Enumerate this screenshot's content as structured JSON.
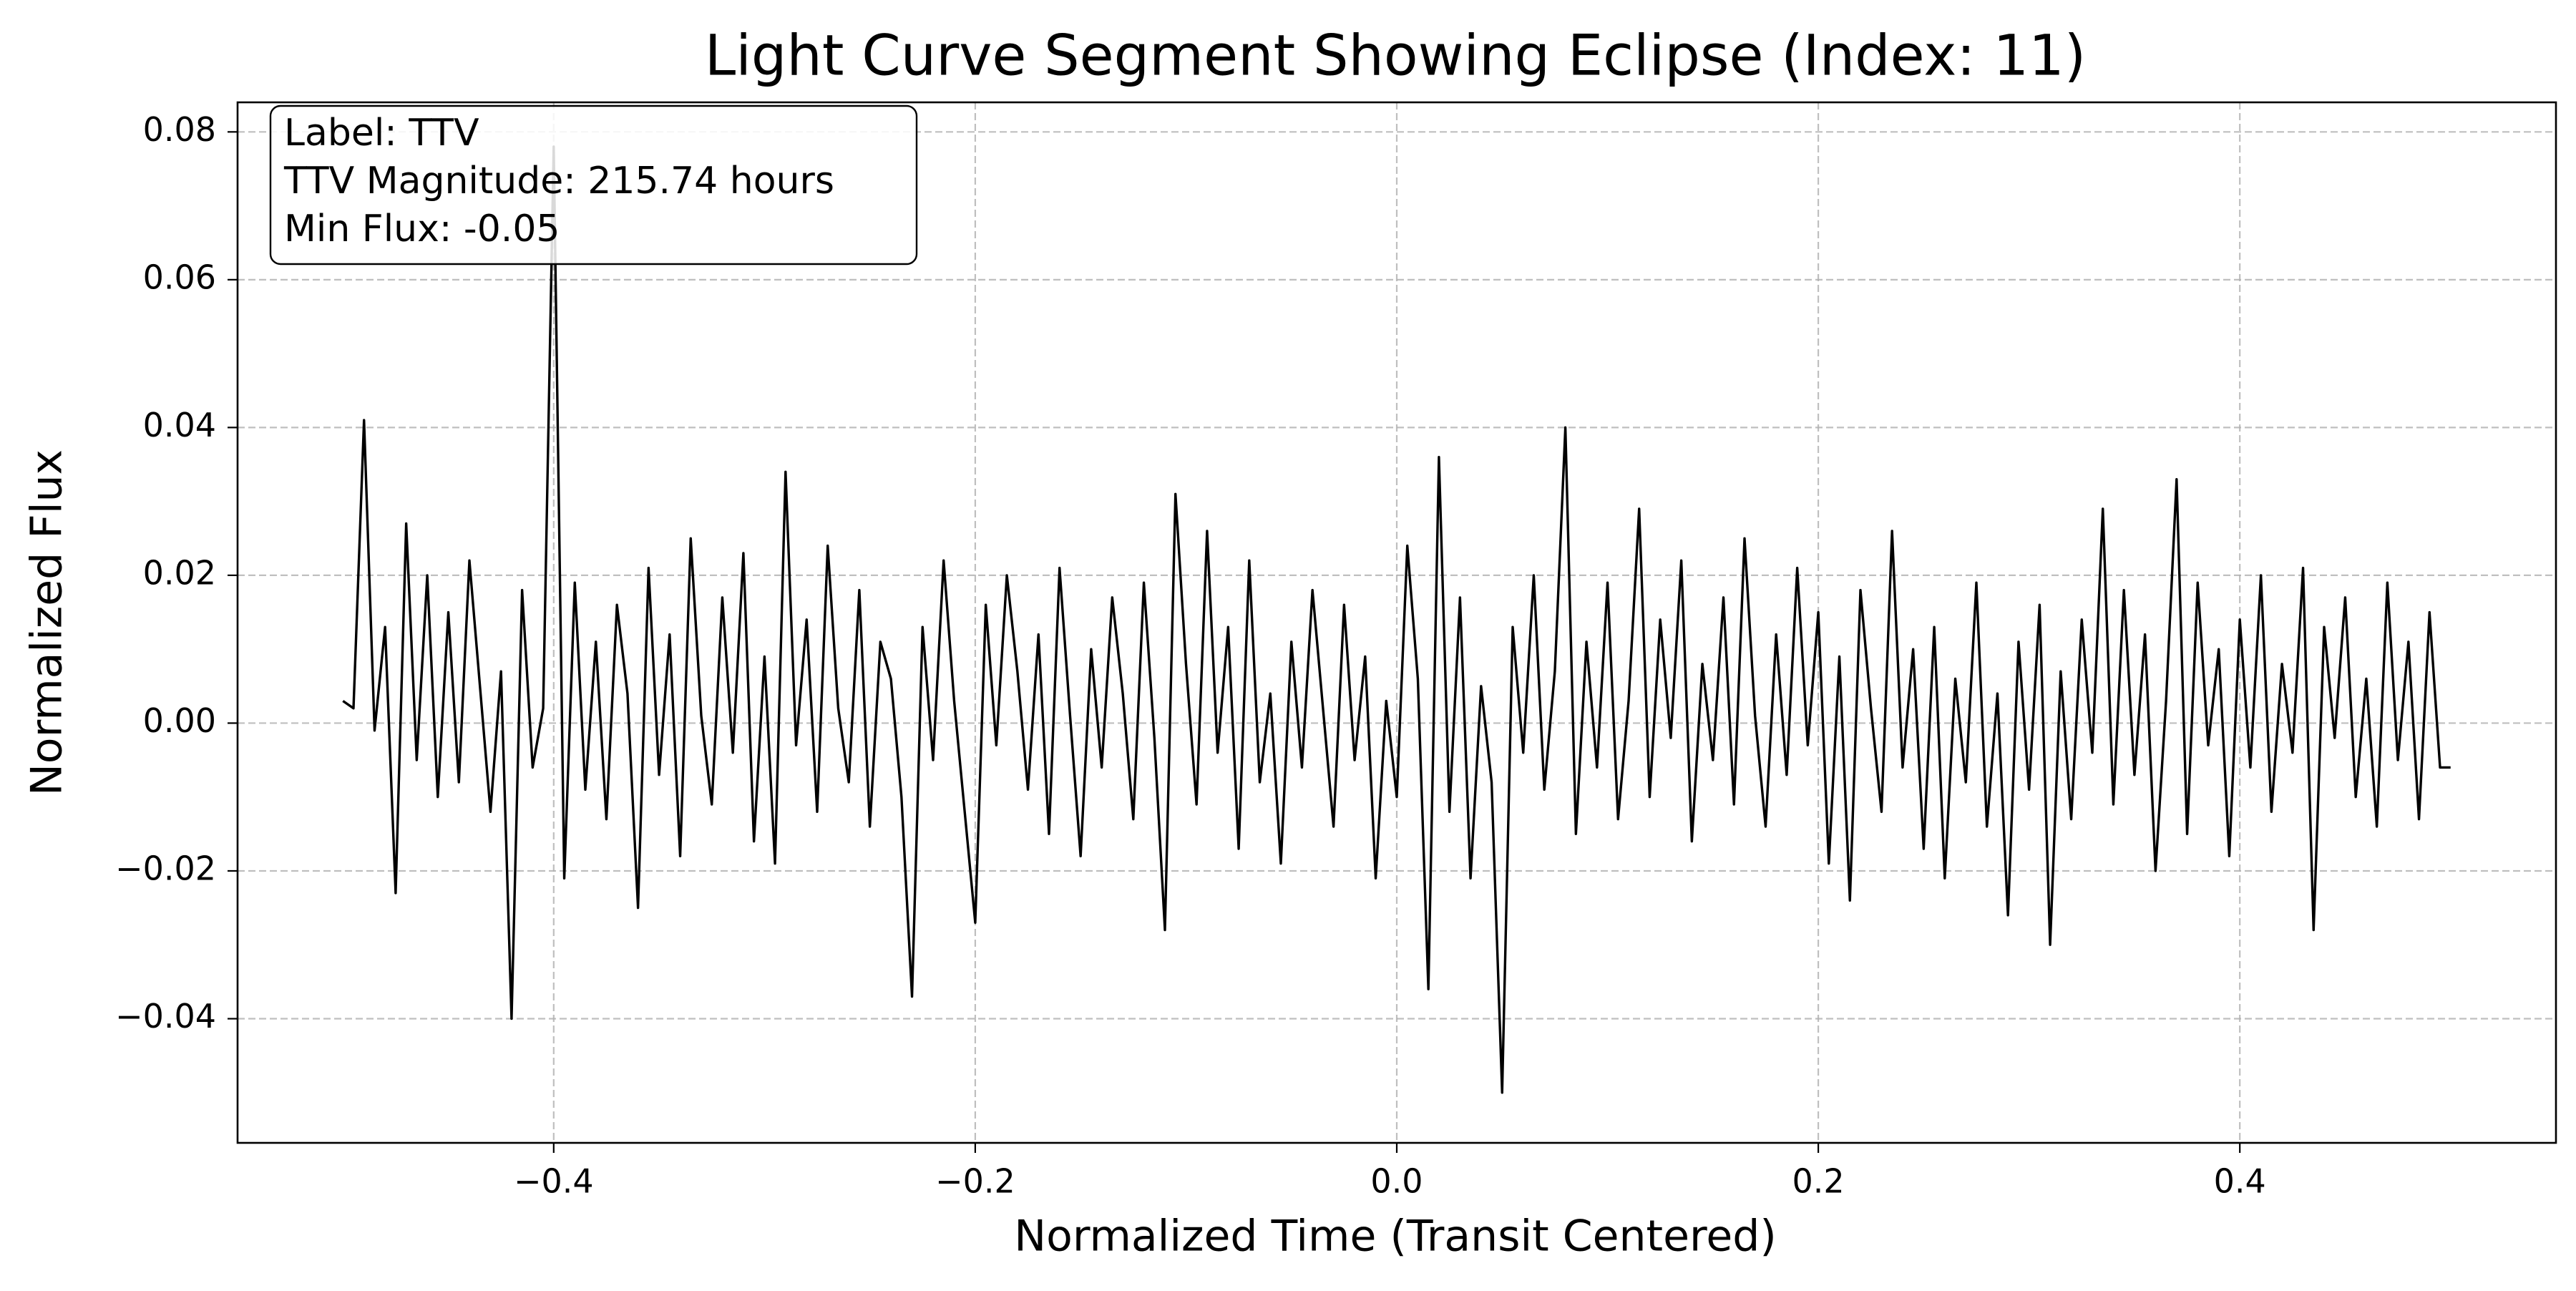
{
  "chart_data": {
    "type": "line",
    "title": "Light Curve Segment Showing Eclipse (Index: 11)",
    "xlabel": "Normalized Time (Transit Centered)",
    "ylabel": "Normalized Flux",
    "annotation": [
      "Label: TTV",
      "TTV Magnitude: 215.74 hours",
      "Min Flux: -0.05"
    ],
    "grid": true,
    "xlim": [
      -0.55,
      0.55
    ],
    "ylim": [
      -0.0568,
      0.084
    ],
    "xticks": [
      {
        "value": -0.4,
        "label": "−0.4"
      },
      {
        "value": -0.2,
        "label": "−0.2"
      },
      {
        "value": 0,
        "label": "0.0"
      },
      0.2,
      0.4
    ],
    "yticks": [
      {
        "value": -0.04,
        "label": "−0.04"
      },
      {
        "value": -0.02,
        "label": "−0.02"
      },
      {
        "value": 0,
        "label": "0.00"
      },
      0.02,
      0.04,
      0.06,
      0.08
    ],
    "x": [
      -0.5,
      -0.495,
      -0.49,
      -0.485,
      -0.48,
      -0.475,
      -0.47,
      -0.465,
      -0.46,
      -0.455,
      -0.45,
      -0.445,
      -0.44,
      -0.435,
      -0.43,
      -0.425,
      -0.42,
      -0.415,
      -0.41,
      -0.405,
      -0.4,
      -0.395,
      -0.39,
      -0.385,
      -0.38,
      -0.375,
      -0.37,
      -0.365,
      -0.36,
      -0.355,
      -0.35,
      -0.345,
      -0.34,
      -0.335,
      -0.33,
      -0.325,
      -0.32,
      -0.315,
      -0.31,
      -0.305,
      -0.3,
      -0.295,
      -0.29,
      -0.285,
      -0.28,
      -0.275,
      -0.27,
      -0.265,
      -0.26,
      -0.255,
      -0.25,
      -0.245,
      -0.24,
      -0.235,
      -0.23,
      -0.225,
      -0.22,
      -0.215,
      -0.21,
      -0.205,
      -0.2,
      -0.195,
      -0.19,
      -0.185,
      -0.18,
      -0.175,
      -0.17,
      -0.165,
      -0.16,
      -0.155,
      -0.15,
      -0.145,
      -0.14,
      -0.135,
      -0.13,
      -0.125,
      -0.12,
      -0.115,
      -0.11,
      -0.105,
      -0.1,
      -0.095,
      -0.09,
      -0.085,
      -0.08,
      -0.075,
      -0.07,
      -0.065,
      -0.06,
      -0.055,
      -0.05,
      -0.045,
      -0.04,
      -0.035,
      -0.03,
      -0.025,
      -0.02,
      -0.015,
      -0.01,
      -0.005,
      0,
      0.005,
      0.01,
      0.015,
      0.02,
      0.025,
      0.03,
      0.035,
      0.04,
      0.045,
      0.05,
      0.055,
      0.06,
      0.065,
      0.07,
      0.075,
      0.08,
      0.085,
      0.09,
      0.095,
      0.1,
      0.105,
      0.11,
      0.115,
      0.12,
      0.125,
      0.13,
      0.135,
      0.14,
      0.145,
      0.15,
      0.155,
      0.16,
      0.165,
      0.17,
      0.175,
      0.18,
      0.185,
      0.19,
      0.195,
      0.2,
      0.205,
      0.21,
      0.215,
      0.22,
      0.225,
      0.23,
      0.235,
      0.24,
      0.245,
      0.25,
      0.255,
      0.26,
      0.265,
      0.27,
      0.275,
      0.28,
      0.285,
      0.29,
      0.295,
      0.3,
      0.305,
      0.31,
      0.315,
      0.32,
      0.325,
      0.33,
      0.335,
      0.34,
      0.345,
      0.35,
      0.355,
      0.36,
      0.365,
      0.37,
      0.375,
      0.38,
      0.385,
      0.39,
      0.395,
      0.4,
      0.405,
      0.41,
      0.415,
      0.42,
      0.425,
      0.43,
      0.435,
      0.44,
      0.445,
      0.45,
      0.455,
      0.46,
      0.465,
      0.47,
      0.475,
      0.48,
      0.485,
      0.49,
      0.495,
      0.5
    ],
    "series": [
      {
        "color": "#000000",
        "values": [
          0.003,
          0.002,
          0.041,
          -0.001,
          0.013,
          -0.023,
          0.027,
          -0.005,
          0.02,
          -0.01,
          0.015,
          -0.008,
          0.022,
          0.005,
          -0.012,
          0.007,
          -0.04,
          0.018,
          -0.006,
          0.002,
          0.078,
          -0.021,
          0.019,
          -0.009,
          0.011,
          -0.013,
          0.016,
          0.004,
          -0.025,
          0.021,
          -0.007,
          0.012,
          -0.018,
          0.025,
          0.001,
          -0.011,
          0.017,
          -0.004,
          0.023,
          -0.016,
          0.009,
          -0.019,
          0.034,
          -0.003,
          0.014,
          -0.012,
          0.024,
          0.002,
          -0.008,
          0.018,
          -0.014,
          0.011,
          0.006,
          -0.01,
          -0.037,
          0.013,
          -0.005,
          0.022,
          0.003,
          -0.012,
          -0.027,
          0.016,
          -0.003,
          0.02,
          0.007,
          -0.009,
          0.012,
          -0.015,
          0.021,
          0.001,
          -0.018,
          0.01,
          -0.006,
          0.017,
          0.004,
          -0.013,
          0.019,
          -0.002,
          -0.028,
          0.031,
          0.008,
          -0.011,
          0.026,
          -0.004,
          0.013,
          -0.017,
          0.022,
          -0.008,
          0.004,
          -0.019,
          0.011,
          -0.006,
          0.018,
          0.002,
          -0.014,
          0.016,
          -0.005,
          0.009,
          -0.021,
          0.003,
          -0.01,
          0.024,
          0.006,
          -0.036,
          0.036,
          -0.012,
          0.017,
          -0.021,
          0.005,
          -0.008,
          -0.05,
          0.013,
          -0.004,
          0.02,
          -0.009,
          0.007,
          0.04,
          -0.015,
          0.011,
          -0.006,
          0.019,
          -0.013,
          0.003,
          0.029,
          -0.01,
          0.014,
          -0.002,
          0.022,
          -0.016,
          0.008,
          -0.005,
          0.017,
          -0.011,
          0.025,
          0.001,
          -0.014,
          0.012,
          -0.007,
          0.021,
          -0.003,
          0.015,
          -0.019,
          0.009,
          -0.024,
          0.018,
          0.002,
          -0.012,
          0.026,
          -0.006,
          0.01,
          -0.017,
          0.013,
          -0.021,
          0.006,
          -0.008,
          0.019,
          -0.014,
          0.004,
          -0.026,
          0.011,
          -0.009,
          0.016,
          -0.03,
          0.007,
          -0.013,
          0.014,
          -0.004,
          0.029,
          -0.011,
          0.018,
          -0.007,
          0.012,
          -0.02,
          0.003,
          0.033,
          -0.015,
          0.019,
          -0.003,
          0.01,
          -0.018,
          0.014,
          -0.006,
          0.02,
          -0.012,
          0.008,
          -0.004,
          0.021,
          -0.028,
          0.013,
          -0.002,
          0.017,
          -0.01,
          0.006,
          -0.014,
          0.019,
          -0.005,
          0.011,
          -0.013,
          0.015,
          -0.006,
          -0.006
        ]
      }
    ]
  }
}
